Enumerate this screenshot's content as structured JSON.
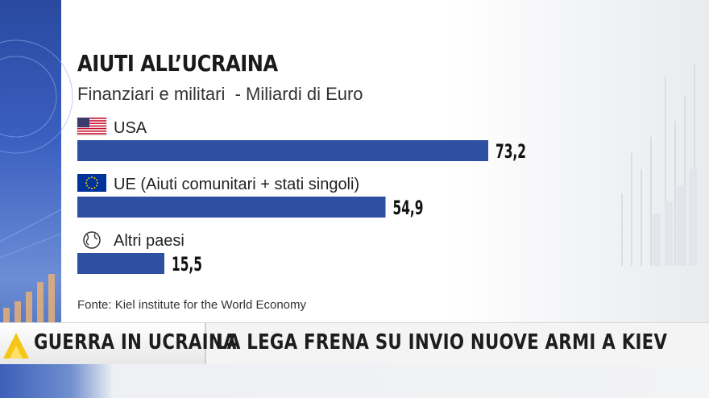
{
  "header": {
    "title": "AIUTI ALL’UCRAINA",
    "subtitle": "Finanziari e militari  - Miliardi di Euro"
  },
  "chart_data": {
    "type": "bar",
    "orientation": "horizontal",
    "title": "AIUTI ALL’UCRAINA",
    "subtitle": "Finanziari e militari  - Miliardi di Euro",
    "categories": [
      "USA",
      "UE (Aiuti comunitari + stati singoli)",
      "Altri paesi"
    ],
    "values": [
      73.2,
      54.9,
      15.5
    ],
    "value_labels": [
      "73,2",
      "54,9",
      "15,5"
    ],
    "icons": [
      "us-flag-icon",
      "eu-flag-icon",
      "globe-icon"
    ],
    "bar_color": "#2f4fa3",
    "xlim": [
      0,
      73.2
    ],
    "grid": false,
    "legend": "none"
  },
  "source": "Fonte: Kiel institute for the World Economy",
  "ticker": {
    "topic": "GUERRA IN UCRAINA",
    "headline": "LA LEGA FRENA SU INVIO NUOVE ARMI A KIEV"
  },
  "colors": {
    "bar": "#2f4fa3",
    "accent_blue": "#3b5fc0",
    "ticker_triangle": "#f5c518"
  }
}
